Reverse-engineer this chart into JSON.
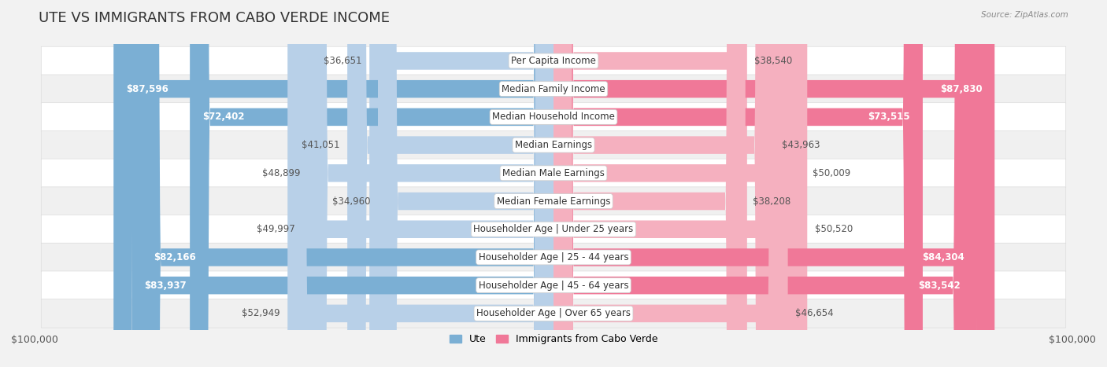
{
  "title": "UTE VS IMMIGRANTS FROM CABO VERDE INCOME",
  "source": "Source: ZipAtlas.com",
  "categories": [
    "Per Capita Income",
    "Median Family Income",
    "Median Household Income",
    "Median Earnings",
    "Median Male Earnings",
    "Median Female Earnings",
    "Householder Age | Under 25 years",
    "Householder Age | 25 - 44 years",
    "Householder Age | 45 - 64 years",
    "Householder Age | Over 65 years"
  ],
  "ute_values": [
    36651,
    87596,
    72402,
    41051,
    48899,
    34960,
    49997,
    82166,
    83937,
    52949
  ],
  "cabo_values": [
    38540,
    87830,
    73515,
    43963,
    50009,
    38208,
    50520,
    84304,
    83542,
    46654
  ],
  "ute_labels": [
    "$36,651",
    "$87,596",
    "$72,402",
    "$41,051",
    "$48,899",
    "$34,960",
    "$49,997",
    "$82,166",
    "$83,937",
    "$52,949"
  ],
  "cabo_labels": [
    "$38,540",
    "$87,830",
    "$73,515",
    "$43,963",
    "$50,009",
    "$38,208",
    "$50,520",
    "$84,304",
    "$83,542",
    "$46,654"
  ],
  "max_value": 100000,
  "ute_color": "#7bafd4",
  "cabo_color": "#f07898",
  "ute_color_light": "#b8d0e8",
  "cabo_color_light": "#f5b0bf",
  "ute_label_white_threshold": 60000,
  "cabo_label_white_threshold": 60000,
  "bg_color": "#f2f2f2",
  "row_bg": "#ffffff",
  "row_bg2": "#f7f7f7",
  "legend_ute": "Ute",
  "legend_cabo": "Immigrants from Cabo Verde",
  "xlabel_left": "$100,000",
  "xlabel_right": "$100,000",
  "title_fontsize": 13,
  "label_fontsize": 8.5,
  "category_fontsize": 8.5
}
